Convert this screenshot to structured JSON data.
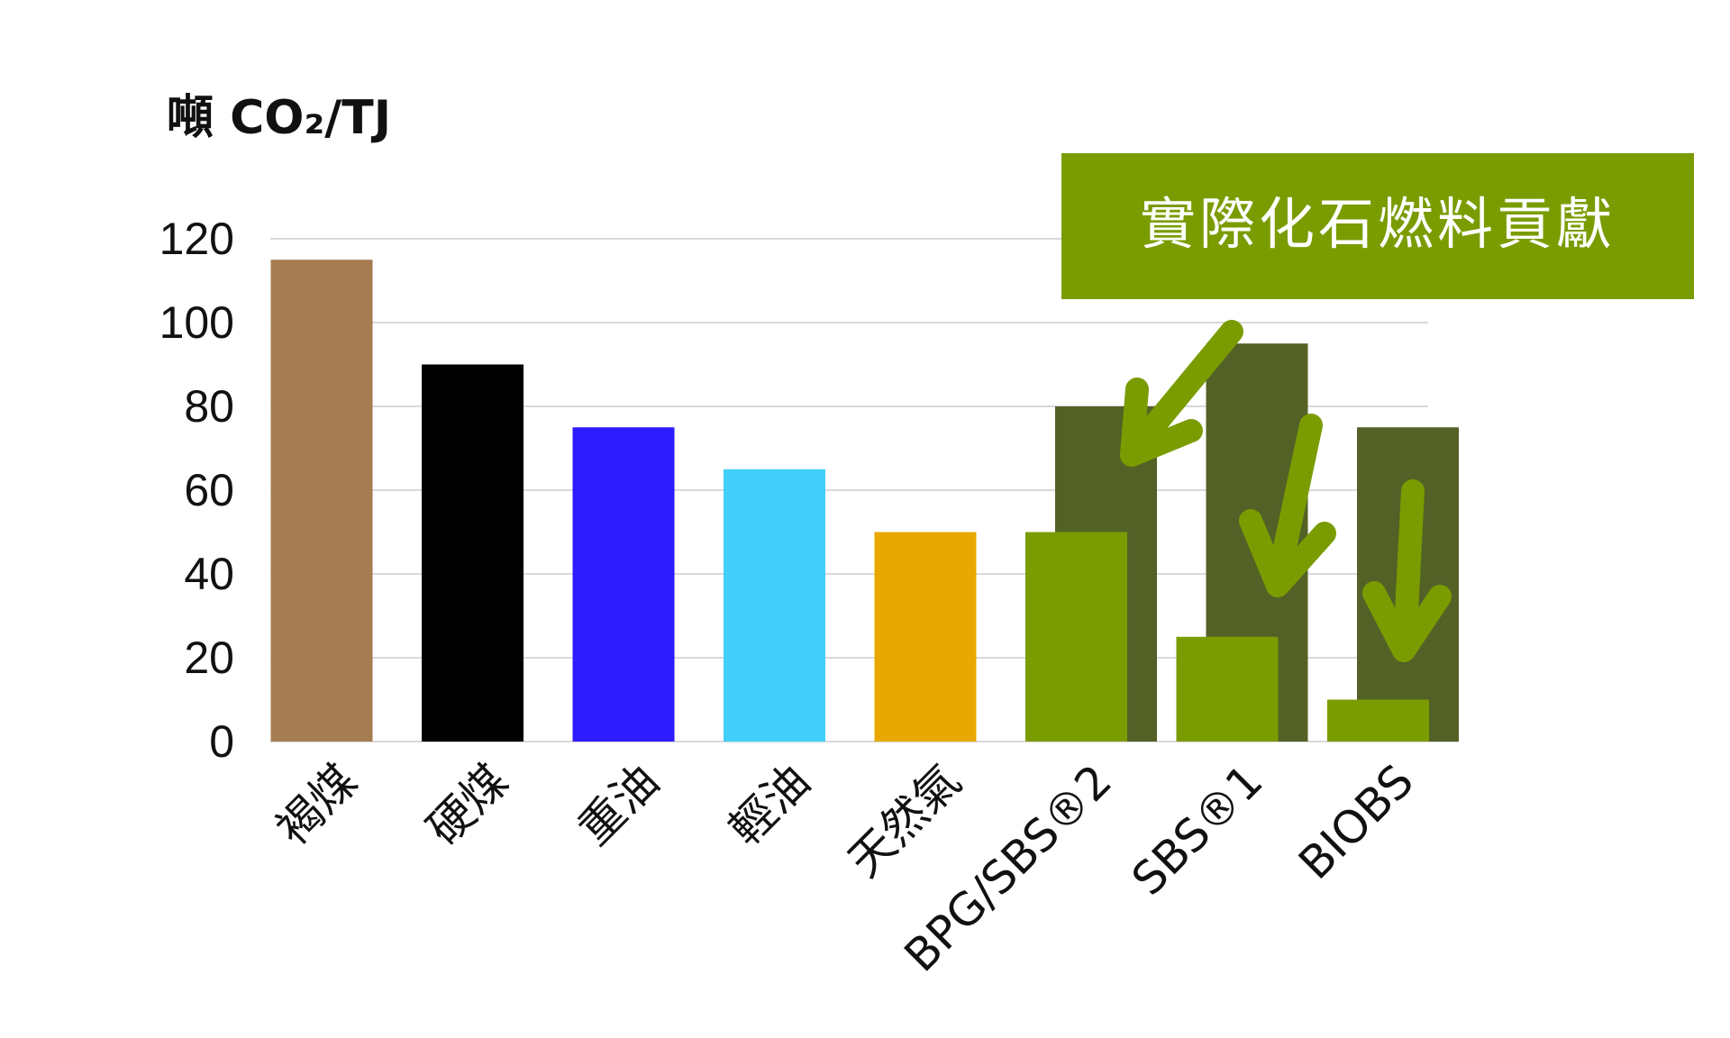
{
  "chart_data": {
    "type": "bar",
    "ylabel": "噸 CO₂/TJ",
    "ylim": [
      0,
      120
    ],
    "yticks": [
      0,
      20,
      40,
      60,
      80,
      100,
      120
    ],
    "grid": true,
    "categories": [
      "褐煤",
      "硬煤",
      "重油",
      "輕油",
      "天然氣",
      "BPG/SBS®2",
      "SBS®1",
      "BIOBS"
    ],
    "series": [
      {
        "values": [
          115,
          90,
          75,
          65,
          50,
          80,
          95,
          75
        ],
        "colors": [
          "#a67c52",
          "#000000",
          "#2e1bff",
          "#42cffa",
          "#e8a800",
          "#546126",
          "#546126",
          "#546126"
        ]
      },
      {
        "values": [
          null,
          null,
          null,
          null,
          null,
          50,
          25,
          10
        ],
        "colors": [
          null,
          null,
          null,
          null,
          null,
          "#7a9c00",
          "#7a9c00",
          "#7a9c00"
        ]
      }
    ],
    "annotation": {
      "text": "實際化石燃料貢獻",
      "background": "#7a9c00",
      "arrow_color": "#7a9c00"
    }
  }
}
